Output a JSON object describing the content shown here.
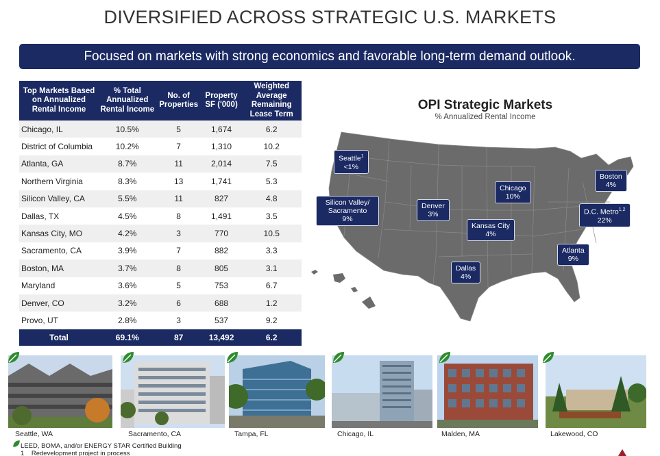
{
  "header": {
    "title": "DIVERSIFIED ACROSS STRATEGIC U.S. MARKETS",
    "banner": "Focused on markets with strong economics and favorable long-term demand outlook."
  },
  "table": {
    "headers": [
      "Top Markets Based on Annualized Rental Income",
      "% Total Annualized Rental Income",
      "No. of Properties",
      "Property SF ('000)",
      "Weighted Average Remaining Lease Term"
    ],
    "rows": [
      [
        "Chicago, IL",
        "10.5%",
        "5",
        "1,674",
        "6.2"
      ],
      [
        "District of Columbia",
        "10.2%",
        "7",
        "1,310",
        "10.2"
      ],
      [
        "Atlanta, GA",
        "8.7%",
        "11",
        "2,014",
        "7.5"
      ],
      [
        "Northern Virginia",
        "8.3%",
        "13",
        "1,741",
        "5.3"
      ],
      [
        "Silicon Valley, CA",
        "5.5%",
        "11",
        "827",
        "4.8"
      ],
      [
        "Dallas, TX",
        "4.5%",
        "8",
        "1,491",
        "3.5"
      ],
      [
        "Kansas City, MO",
        "4.2%",
        "3",
        "770",
        "10.5"
      ],
      [
        "Sacramento, CA",
        "3.9%",
        "7",
        "882",
        "3.3"
      ],
      [
        "Boston, MA",
        "3.7%",
        "8",
        "805",
        "3.1"
      ],
      [
        "Maryland",
        "3.6%",
        "5",
        "753",
        "6.7"
      ],
      [
        "Denver, CO",
        "3.2%",
        "6",
        "688",
        "1.2"
      ],
      [
        "Provo, UT",
        "2.8%",
        "3",
        "537",
        "9.2"
      ]
    ],
    "total": [
      "Total",
      "69.1%",
      "87",
      "13,492",
      "6.2"
    ]
  },
  "map": {
    "title": "OPI Strategic Markets",
    "subtitle": "% Annualized Rental Income",
    "labels": {
      "seattle": {
        "name": "Seattle",
        "sup": "1",
        "value": "<1%"
      },
      "silicon": {
        "name": "Silicon Valley/",
        "name2": "Sacramento",
        "value": "9%"
      },
      "denver": {
        "name": "Denver",
        "value": "3%"
      },
      "chicago": {
        "name": "Chicago",
        "value": "10%"
      },
      "kansas": {
        "name": "Kansas City",
        "value": "4%"
      },
      "boston": {
        "name": "Boston",
        "value": "4%"
      },
      "dc": {
        "name": "D.C. Metro",
        "sup": "1,2",
        "value": "22%"
      },
      "atlanta": {
        "name": "Atlanta",
        "value": "9%"
      },
      "dallas": {
        "name": "Dallas",
        "value": "4%"
      }
    }
  },
  "photos": [
    {
      "caption": "Seattle, WA"
    },
    {
      "caption": "Sacramento, CA"
    },
    {
      "caption": "Tampa, FL"
    },
    {
      "caption": "Chicago, IL"
    },
    {
      "caption": "Malden, MA"
    },
    {
      "caption": "Lakewood, CO"
    }
  ],
  "footnotes": {
    "leed": "LEED, BOMA, and/or ENERGY STAR Certified Building",
    "note1_num": "1",
    "note1": "Redevelopment project in process"
  },
  "colors": {
    "navy": "#1b2a63",
    "leaf": "#2e8b2e",
    "map": "#6b6b6b"
  },
  "icons": [
    "leaf-icon",
    "company-logo-icon"
  ]
}
